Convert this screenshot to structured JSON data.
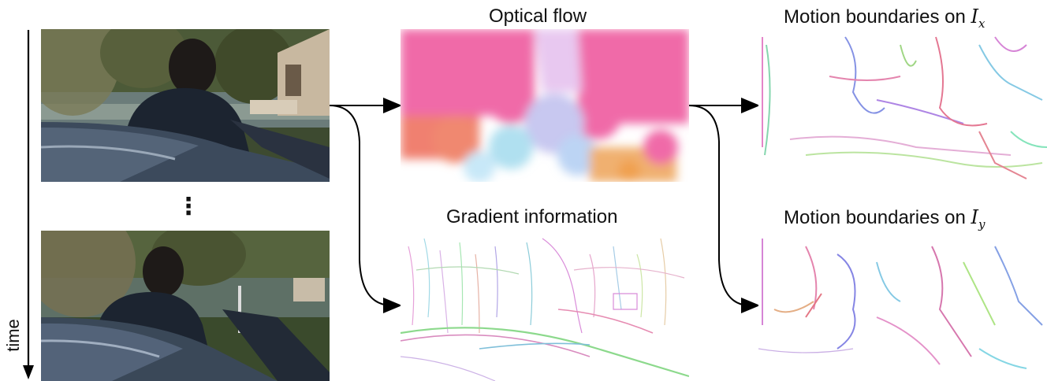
{
  "labels": {
    "optical_flow": "Optical flow",
    "gradient_information": "Gradient information",
    "motion_boundaries_prefix": "Motion boundaries on",
    "motion_x_var": "I",
    "motion_x_sub": "x",
    "motion_y_var": "I",
    "motion_y_sub": "y",
    "time": "time",
    "ellipsis": "⋮"
  },
  "colors": {
    "flow_pink": "#f06aa8",
    "flow_salmon": "#f08070",
    "flow_blue": "#b8c8f0",
    "flow_orange": "#f0a860",
    "arrow": "#000000"
  }
}
